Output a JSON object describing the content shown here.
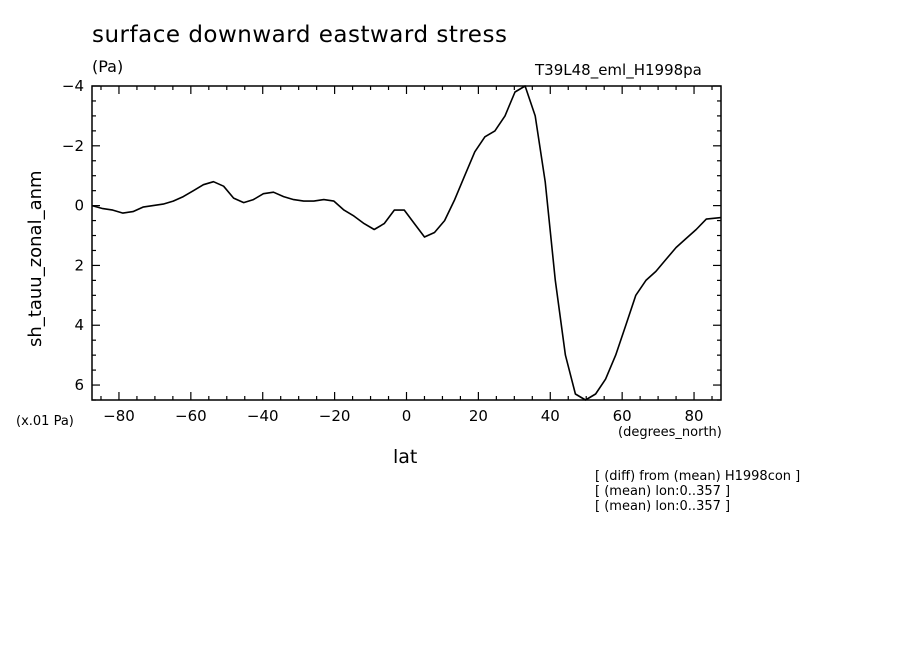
{
  "chart_data": {
    "type": "line",
    "title": "surface downward eastward stress",
    "units": "(Pa)",
    "experiment": "T39L48_eml_H1998pa",
    "ylabel": "sh_tauu_zonal_anm",
    "xlabel": "lat",
    "x_units": "(degrees_north)",
    "scale_note": "(x.01 Pa)",
    "annotations": [
      "[ (diff) from (mean) H1998con ]",
      "[ (mean) lon:0..357 ]",
      "[ (mean) lon:0..357 ]"
    ],
    "xlim": [
      -87.5,
      87.5
    ],
    "ylim": [
      6.5,
      -4
    ],
    "y_inverted": true,
    "x_ticks": [
      -80,
      -60,
      -40,
      -20,
      0,
      20,
      40,
      60,
      80
    ],
    "x_tick_labels": [
      "−80",
      "−60",
      "−40",
      "−20",
      "0",
      "20",
      "40",
      "60",
      "80"
    ],
    "y_ticks": [
      -4,
      -2,
      0,
      2,
      4,
      6
    ],
    "y_tick_labels": [
      "−4",
      "−2",
      "0",
      "2",
      "4",
      "6"
    ],
    "grid": false,
    "series": [
      {
        "x": [
          -87.5,
          -84.5,
          -81.7,
          -78.9,
          -76.1,
          -73.3,
          -70.5,
          -67.7,
          -64.9,
          -62.1,
          -59.3,
          -56.5,
          -53.7,
          -50.9,
          -48.1,
          -45.3,
          -42.6,
          -39.8,
          -37.0,
          -34.2,
          -31.4,
          -28.6,
          -25.8,
          -23.0,
          -20.2,
          -17.4,
          -14.6,
          -11.8,
          -9.0,
          -6.2,
          -3.4,
          -0.6,
          2.2,
          5.0,
          7.8,
          10.6,
          13.4,
          16.2,
          19.0,
          21.8,
          24.6,
          27.4,
          30.2,
          33.0,
          35.8,
          38.6,
          41.4,
          44.2,
          47.0,
          49.8,
          52.6,
          55.4,
          58.2,
          61.0,
          63.8,
          66.6,
          69.4,
          72.2,
          75.0,
          77.8,
          80.6,
          83.4,
          87.5
        ],
        "y": [
          0.0,
          0.1,
          0.15,
          0.25,
          0.2,
          0.05,
          0.0,
          -0.05,
          -0.15,
          -0.3,
          -0.5,
          -0.7,
          -0.8,
          -0.65,
          -0.25,
          -0.1,
          -0.2,
          -0.4,
          -0.45,
          -0.3,
          -0.2,
          -0.15,
          -0.15,
          -0.2,
          -0.15,
          0.15,
          0.35,
          0.6,
          0.8,
          0.6,
          0.15,
          0.15,
          0.6,
          1.05,
          0.9,
          0.5,
          -0.2,
          -1.0,
          -1.8,
          -2.3,
          -2.5,
          -3.0,
          -3.8,
          -4.0,
          -3.0,
          -0.8,
          2.5,
          5.0,
          6.3,
          6.6,
          6.3,
          5.8,
          5.0,
          4.0,
          3.0,
          2.5,
          2.2,
          1.8,
          1.4,
          1.1,
          0.8,
          0.45,
          0.4
        ]
      }
    ]
  }
}
